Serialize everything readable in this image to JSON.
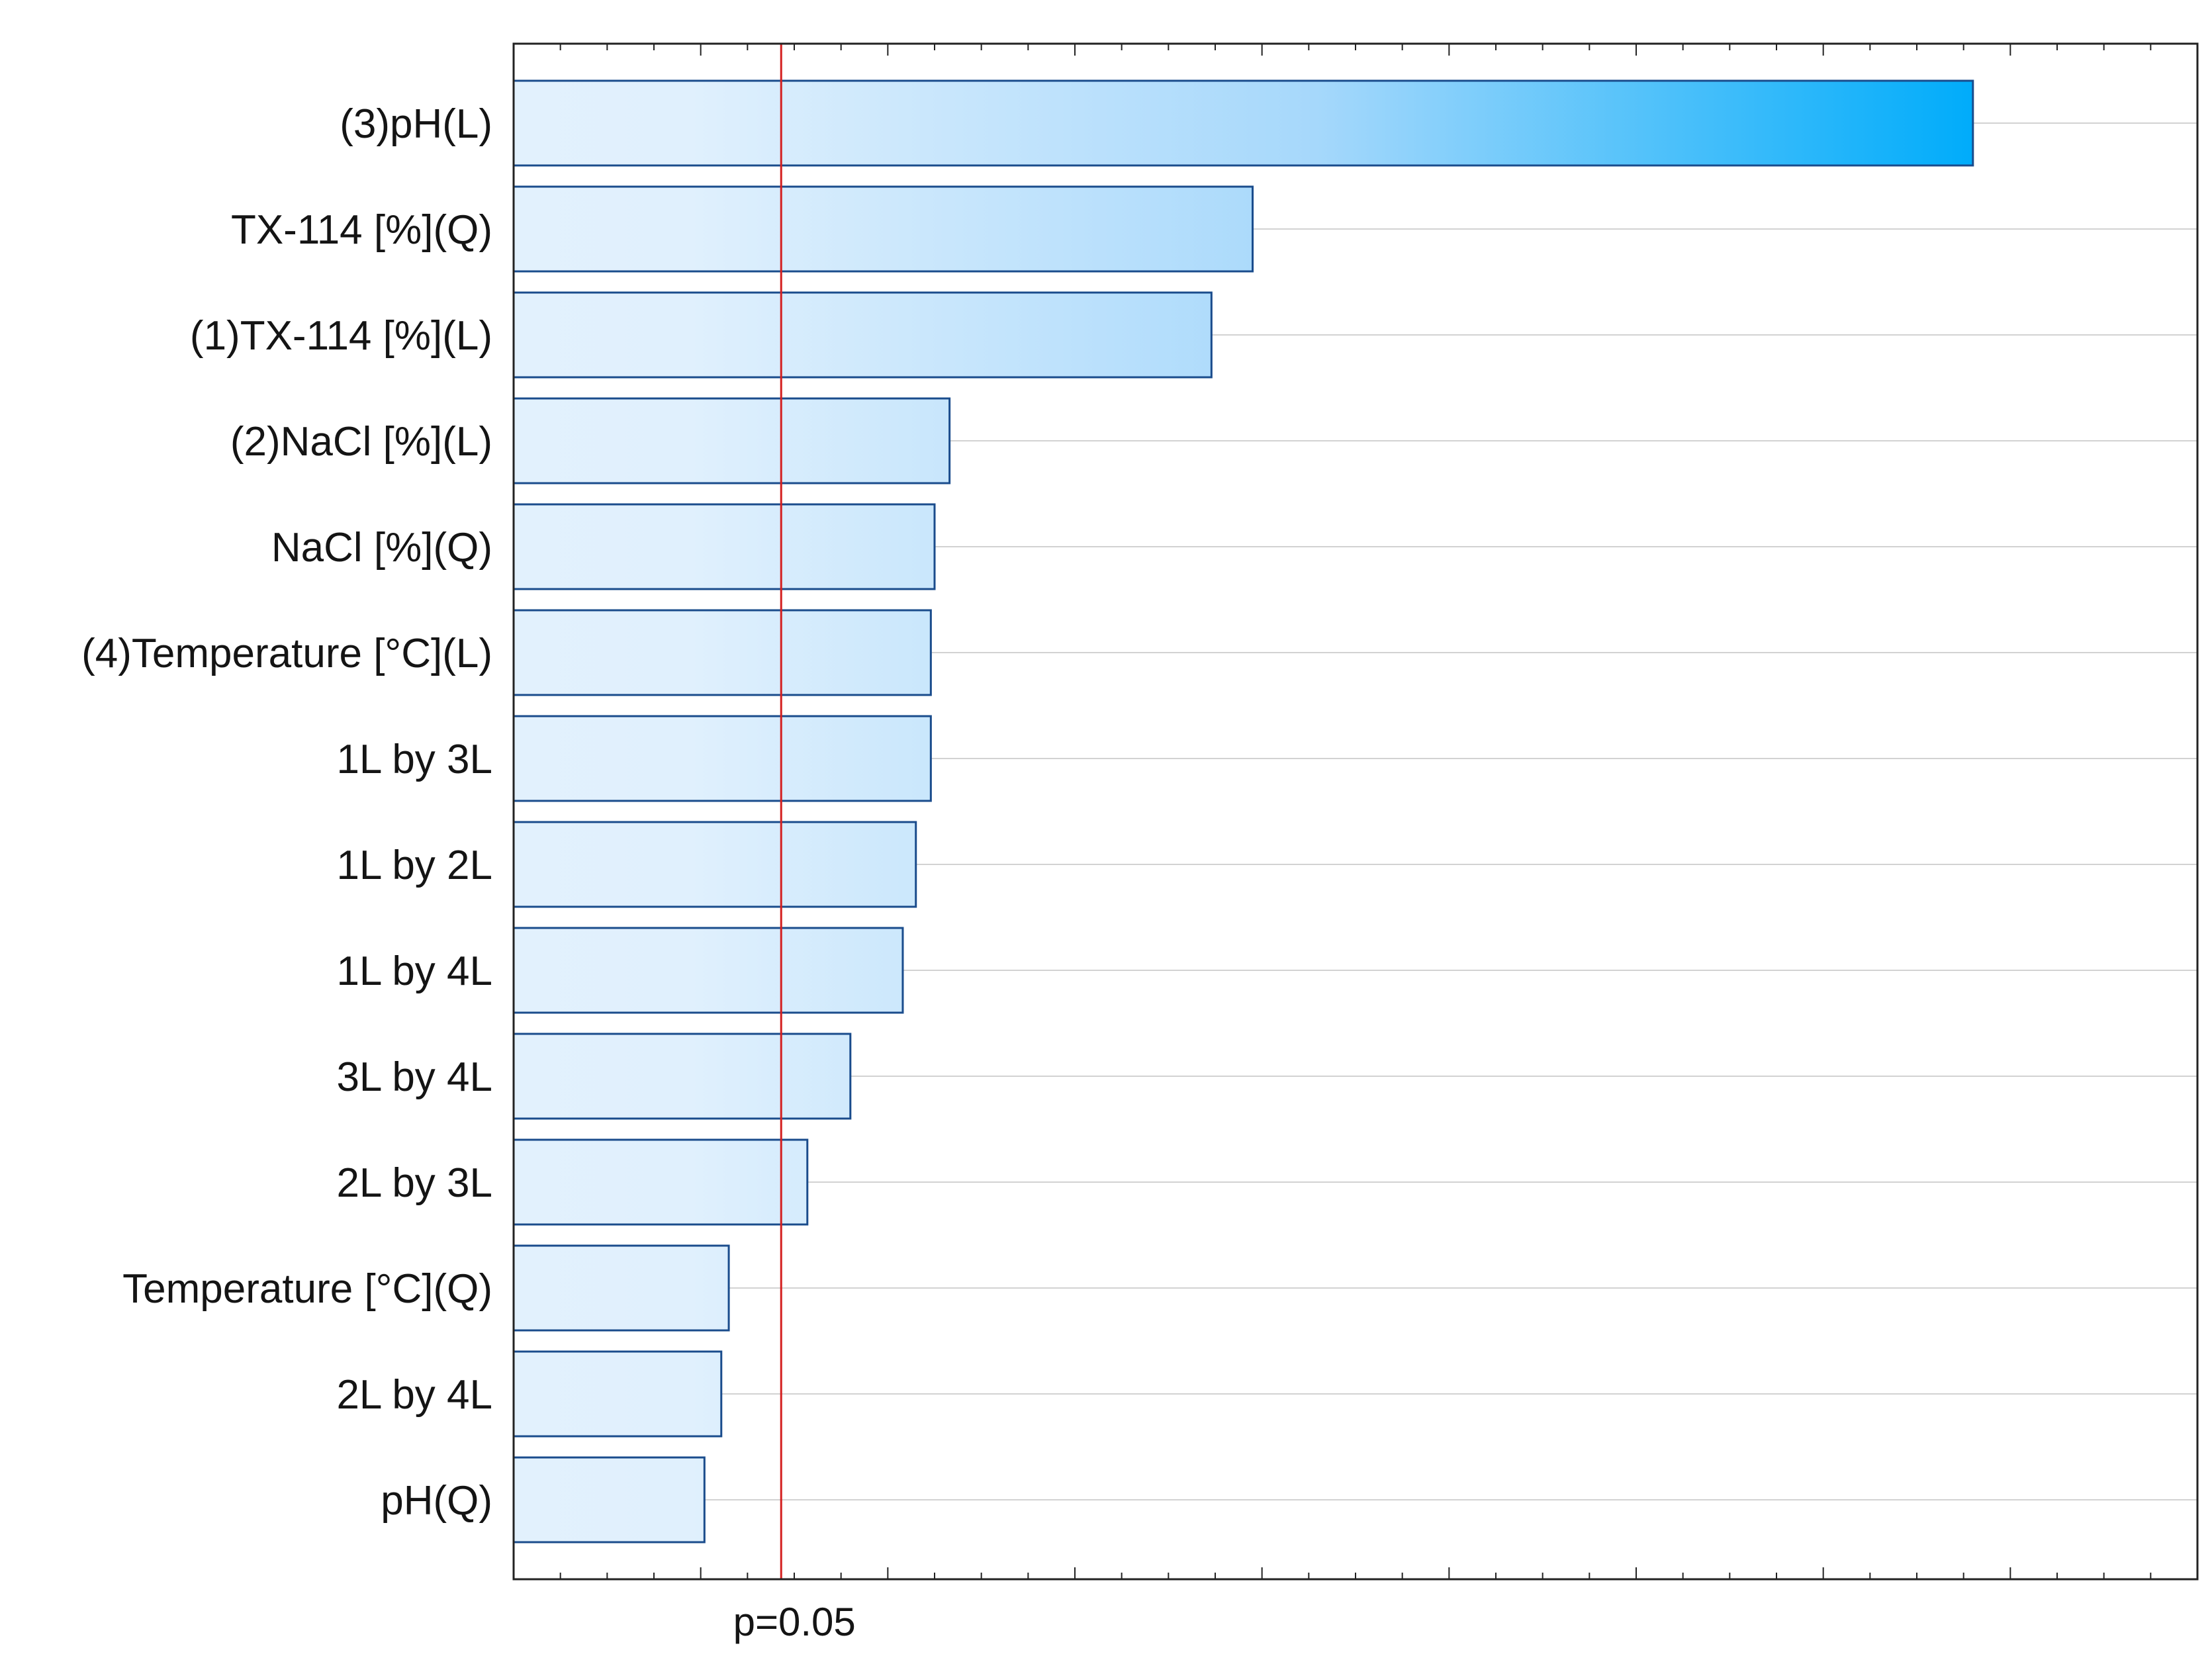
{
  "chart_data": {
    "type": "bar",
    "orientation": "horizontal",
    "title": "",
    "xlabel": "",
    "ylabel": "",
    "categories": [
      "(3)pH(L)",
      "TX-114  [%](Q)",
      "(1)TX-114  [%](L)",
      "(2)NaCl [%](L)",
      "NaCl [%](Q)",
      "(4)Temperature [°C](L)",
      "1L by 3L",
      "1L by 2L",
      "1L by 4L",
      "3L by 4L",
      "2L by 3L",
      "Temperature [°C](Q)",
      "2L by 4L",
      "pH(Q)"
    ],
    "values": [
      7.8,
      3.95,
      3.73,
      2.33,
      2.25,
      2.23,
      2.23,
      2.15,
      2.08,
      1.8,
      1.57,
      1.15,
      1.11,
      1.02
    ],
    "xlim": [
      0,
      9
    ],
    "x_major_tick_step": 1,
    "x_minor_tick_step": 0.25,
    "x_tick_labels_shown": false,
    "reference_line": {
      "value": 1.43,
      "label": "p=0.05",
      "color": "#d42020"
    },
    "grid": true,
    "grid_axis": "horizontal",
    "legend": "none",
    "colors": {
      "bar_fill_start": "#e2f1fd",
      "bar_fill_end": "#00acfa",
      "bar_stroke": "#1a4c8c",
      "grid": "#d2d2d2",
      "axis": "#222222",
      "text": "#141414"
    }
  }
}
